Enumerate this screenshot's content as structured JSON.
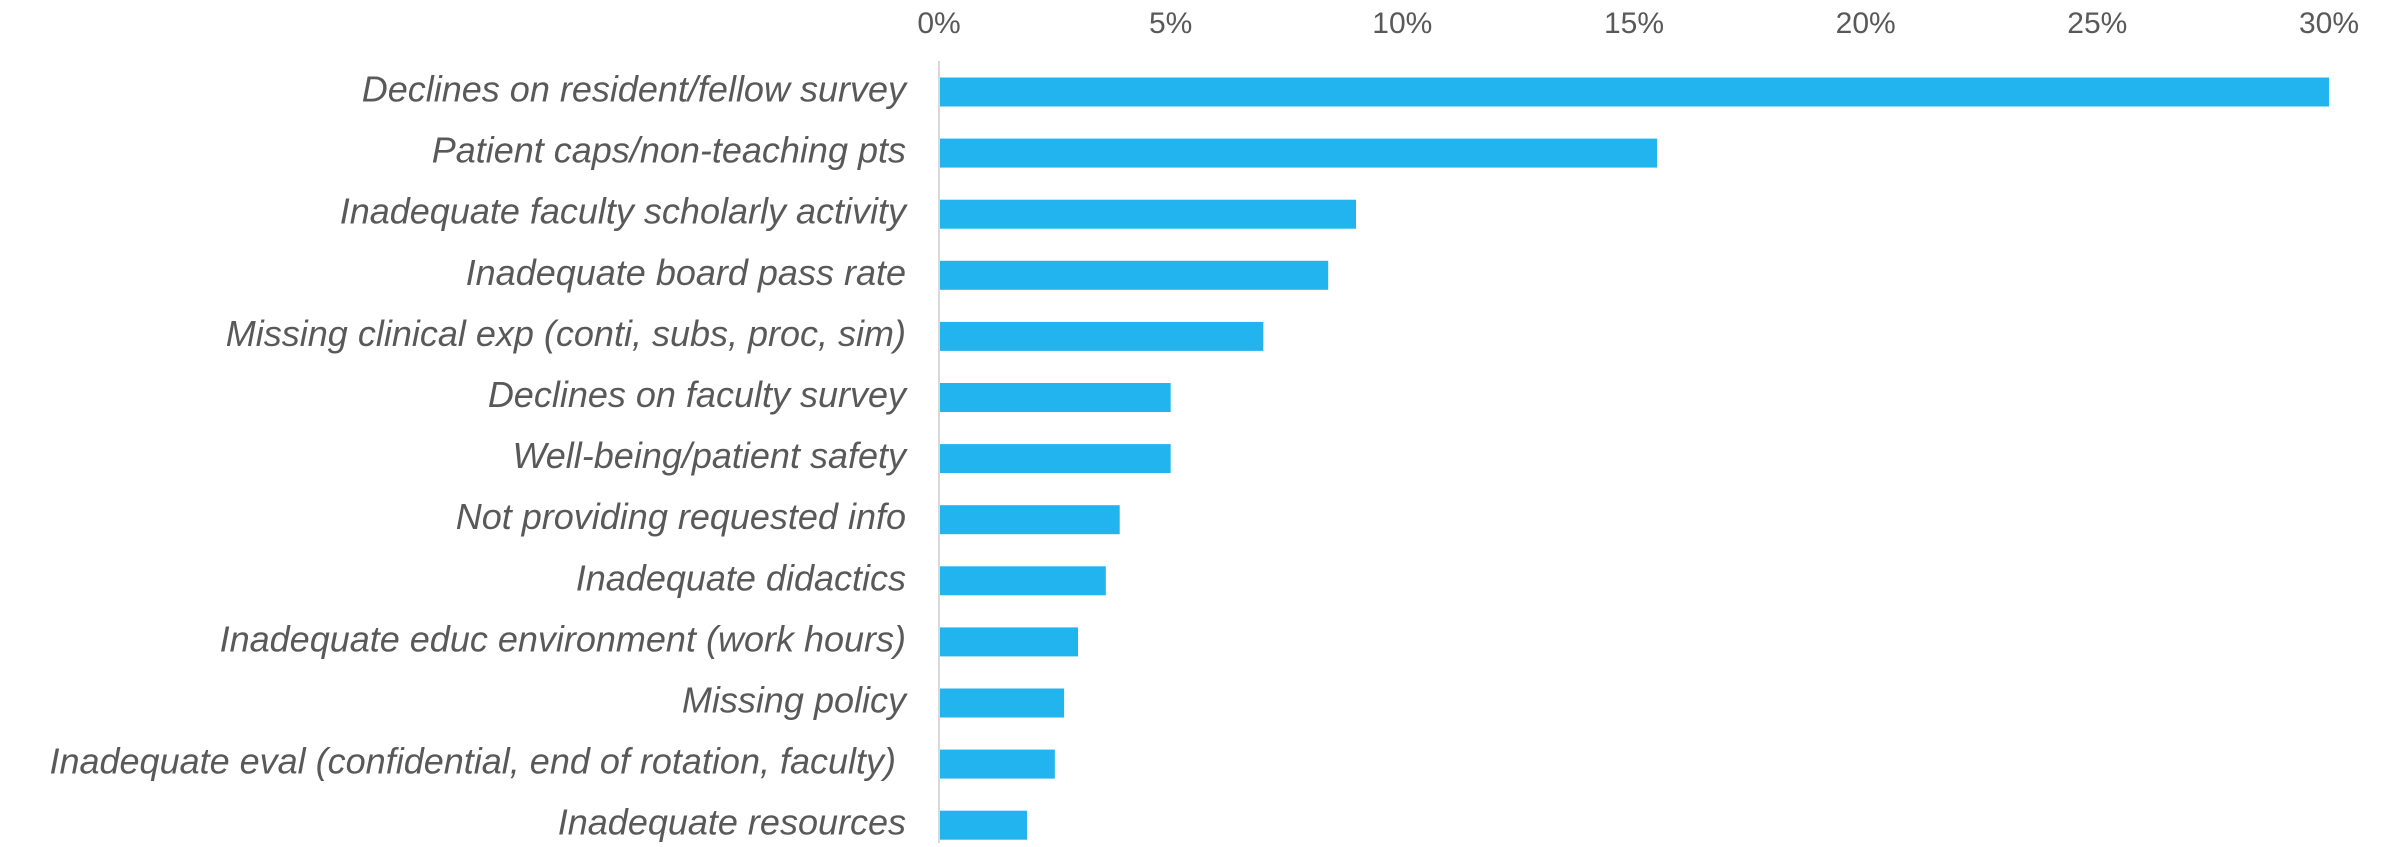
{
  "chart_data": {
    "type": "bar",
    "orientation": "horizontal",
    "title": "",
    "xlabel": "",
    "ylabel": "",
    "xlim": [
      0,
      30
    ],
    "x_ticks": [
      "0%",
      "5%",
      "10%",
      "15%",
      "20%",
      "25%",
      "30%"
    ],
    "x_tick_values": [
      0,
      5,
      10,
      15,
      20,
      25,
      30
    ],
    "axis_position": "top",
    "grid": false,
    "legend": false,
    "bar_color": "#22b4ee",
    "label_color": "#595959",
    "axis_color": "#d9d9d9",
    "categories": [
      "Declines on resident/fellow survey",
      "Patient caps/non-teaching pts",
      "Inadequate faculty scholarly activity",
      "Inadequate board pass rate",
      "Missing clinical exp (conti, subs, proc, sim)",
      "Declines on faculty survey",
      "Well-being/patient safety",
      "Not providing requested info",
      "Inadequate didactics",
      "Inadequate educ environment (work hours)",
      "Missing policy",
      "Inadequate eval (confidential, end of rotation, faculty) ",
      "Inadequate resources"
    ],
    "values": [
      30.0,
      15.5,
      9.0,
      8.4,
      7.0,
      5.0,
      5.0,
      3.9,
      3.6,
      3.0,
      2.7,
      2.5,
      1.9
    ]
  }
}
